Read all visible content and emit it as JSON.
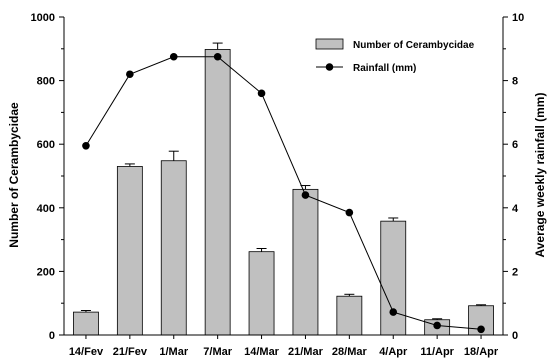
{
  "chart_data": {
    "type": "bar",
    "categories": [
      "14/Fev",
      "21/Fev",
      "1/Mar",
      "7/Mar",
      "14/Mar",
      "21/Mar",
      "28/Mar",
      "4/Apr",
      "11/Apr",
      "18/Apr"
    ],
    "series": [
      {
        "name": "Number of Cerambycidae",
        "type": "bar",
        "axis": "left",
        "values": [
          72,
          530,
          548,
          898,
          262,
          458,
          122,
          358,
          48,
          92
        ],
        "errors": [
          5,
          8,
          30,
          20,
          10,
          12,
          6,
          10,
          3,
          3
        ],
        "color": "#c0c0c0"
      },
      {
        "name": "Rainfall (mm)",
        "type": "line",
        "axis": "right",
        "values": [
          5.95,
          8.2,
          8.75,
          8.75,
          7.6,
          4.4,
          3.85,
          0.72,
          0.3,
          0.18
        ],
        "color": "#000000"
      }
    ],
    "ylabel": "Number of Cerambycidae",
    "ylim": [
      0,
      1000
    ],
    "yticks": [
      0,
      200,
      400,
      600,
      800,
      1000
    ],
    "y2label": "Average weekly rainfall (mm)",
    "y2lim": [
      0,
      10
    ],
    "y2ticks": [
      0,
      2,
      4,
      6,
      8,
      10
    ],
    "xlabel": "",
    "grid": false,
    "legend_position": "top-right"
  }
}
